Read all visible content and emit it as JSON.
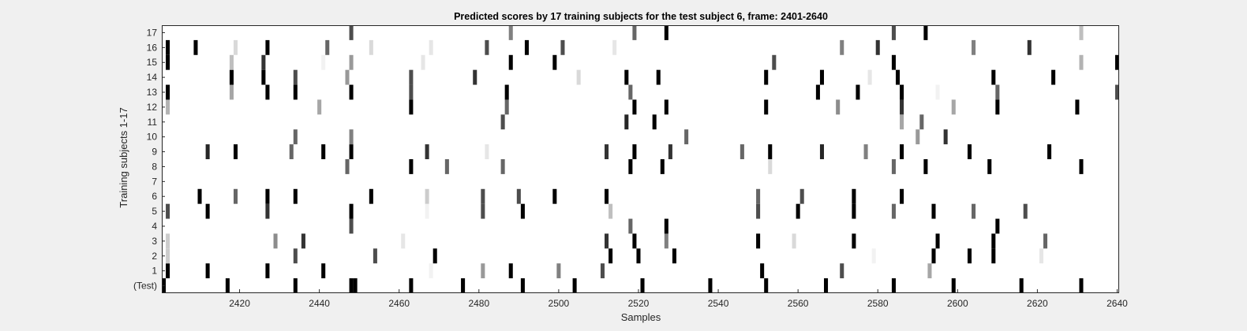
{
  "chart_data": {
    "type": "heatmap",
    "title": "Predicted scores by 17 training subjects for the test subject 6, frame: 2401-2640",
    "xlabel": "Samples",
    "ylabel": "Training subjects 1-17",
    "xlim": [
      2401,
      2640
    ],
    "x_ticks": [
      2420,
      2440,
      2460,
      2480,
      2500,
      2520,
      2540,
      2560,
      2580,
      2600,
      2620,
      2640
    ],
    "rows": [
      "(Test)",
      "1",
      "2",
      "3",
      "4",
      "5",
      "6",
      "7",
      "8",
      "9",
      "10",
      "11",
      "12",
      "13",
      "14",
      "15",
      "16",
      "17"
    ],
    "colormap": "gray (white = 0, black = 1)",
    "series": [
      {
        "name": "(Test)",
        "marks": [
          [
            2401,
            1
          ],
          [
            2417,
            1
          ],
          [
            2434,
            1
          ],
          [
            2448,
            1
          ],
          [
            2449,
            1
          ],
          [
            2463,
            1
          ],
          [
            2476,
            1
          ],
          [
            2491,
            1
          ],
          [
            2504,
            1
          ],
          [
            2521,
            1
          ],
          [
            2538,
            1
          ],
          [
            2552,
            1
          ],
          [
            2567,
            1
          ],
          [
            2584,
            1
          ],
          [
            2599,
            1
          ],
          [
            2616,
            1
          ],
          [
            2631,
            1
          ]
        ]
      },
      {
        "name": "1",
        "marks": [
          [
            2402,
            1
          ],
          [
            2412,
            1
          ],
          [
            2427,
            1
          ],
          [
            2441,
            1
          ],
          [
            2468,
            0.05
          ],
          [
            2481,
            0.4
          ],
          [
            2488,
            1
          ],
          [
            2500,
            0.5
          ],
          [
            2511,
            0.7
          ],
          [
            2551,
            1
          ],
          [
            2571,
            0.7
          ],
          [
            2593,
            0.35
          ]
        ]
      },
      {
        "name": "2",
        "marks": [
          [
            2402,
            0.2
          ],
          [
            2434,
            0.7
          ],
          [
            2454,
            0.7
          ],
          [
            2469,
            1
          ],
          [
            2513,
            1
          ],
          [
            2520,
            1
          ],
          [
            2529,
            1
          ],
          [
            2579,
            0.05
          ],
          [
            2594,
            1
          ],
          [
            2603,
            1
          ],
          [
            2609,
            1
          ],
          [
            2621,
            0.1
          ]
        ]
      },
      {
        "name": "3",
        "marks": [
          [
            2402,
            0.2
          ],
          [
            2429,
            0.45
          ],
          [
            2436,
            0.8
          ],
          [
            2461,
            0.1
          ],
          [
            2512,
            0.8
          ],
          [
            2519,
            1
          ],
          [
            2527,
            0.5
          ],
          [
            2550,
            1
          ],
          [
            2559,
            0.15
          ],
          [
            2574,
            1
          ],
          [
            2595,
            1
          ],
          [
            2609,
            1
          ],
          [
            2622,
            0.6
          ]
        ]
      },
      {
        "name": "4",
        "marks": [
          [
            2448,
            0.7
          ],
          [
            2518,
            0.6
          ],
          [
            2527,
            1
          ],
          [
            2610,
            1
          ]
        ]
      },
      {
        "name": "5",
        "marks": [
          [
            2402,
            0.7
          ],
          [
            2412,
            1
          ],
          [
            2427,
            0.8
          ],
          [
            2448,
            1
          ],
          [
            2467,
            0.05
          ],
          [
            2481,
            0.7
          ],
          [
            2491,
            1
          ],
          [
            2513,
            0.25
          ],
          [
            2550,
            0.7
          ],
          [
            2560,
            1
          ],
          [
            2574,
            1
          ],
          [
            2584,
            0.6
          ],
          [
            2594,
            1
          ],
          [
            2604,
            0.6
          ],
          [
            2617,
            0.7
          ]
        ]
      },
      {
        "name": "6",
        "marks": [
          [
            2410,
            1
          ],
          [
            2419,
            0.6
          ],
          [
            2427,
            1
          ],
          [
            2434,
            1
          ],
          [
            2453,
            1
          ],
          [
            2467,
            0.2
          ],
          [
            2481,
            0.7
          ],
          [
            2490,
            0.7
          ],
          [
            2499,
            1
          ],
          [
            2512,
            1
          ],
          [
            2550,
            0.6
          ],
          [
            2561,
            0.7
          ],
          [
            2574,
            1
          ],
          [
            2586,
            1
          ]
        ]
      },
      {
        "name": "7",
        "marks": []
      },
      {
        "name": "8",
        "marks": [
          [
            2447,
            0.6
          ],
          [
            2463,
            1
          ],
          [
            2472,
            0.6
          ],
          [
            2486,
            0.6
          ],
          [
            2518,
            1
          ],
          [
            2526,
            1
          ],
          [
            2553,
            0.15
          ],
          [
            2584,
            0.6
          ],
          [
            2592,
            1
          ],
          [
            2608,
            1
          ],
          [
            2631,
            1
          ]
        ]
      },
      {
        "name": "9",
        "marks": [
          [
            2412,
            0.85
          ],
          [
            2419,
            1
          ],
          [
            2433,
            0.6
          ],
          [
            2441,
            1
          ],
          [
            2448,
            1
          ],
          [
            2467,
            0.8
          ],
          [
            2482,
            0.1
          ],
          [
            2512,
            0.8
          ],
          [
            2519,
            1
          ],
          [
            2528,
            0.8
          ],
          [
            2546,
            0.6
          ],
          [
            2553,
            1
          ],
          [
            2566,
            0.85
          ],
          [
            2577,
            0.5
          ],
          [
            2586,
            1
          ],
          [
            2603,
            1
          ],
          [
            2623,
            1
          ]
        ]
      },
      {
        "name": "10",
        "marks": [
          [
            2434,
            0.6
          ],
          [
            2448,
            0.5
          ],
          [
            2532,
            0.6
          ],
          [
            2590,
            0.4
          ],
          [
            2597,
            0.8
          ]
        ]
      },
      {
        "name": "11",
        "marks": [
          [
            2486,
            0.7
          ],
          [
            2517,
            0.85
          ],
          [
            2524,
            1
          ],
          [
            2586,
            0.35
          ],
          [
            2591,
            0.6
          ]
        ]
      },
      {
        "name": "12",
        "marks": [
          [
            2402,
            0.3
          ],
          [
            2440,
            0.35
          ],
          [
            2463,
            1
          ],
          [
            2487,
            0.6
          ],
          [
            2519,
            1
          ],
          [
            2527,
            1
          ],
          [
            2552,
            1
          ],
          [
            2570,
            0.45
          ],
          [
            2586,
            0.8
          ],
          [
            2599,
            0.35
          ],
          [
            2610,
            1
          ],
          [
            2630,
            1
          ]
        ]
      },
      {
        "name": "13",
        "marks": [
          [
            2402,
            1
          ],
          [
            2418,
            0.35
          ],
          [
            2427,
            1
          ],
          [
            2434,
            1
          ],
          [
            2448,
            1
          ],
          [
            2463,
            0.7
          ],
          [
            2487,
            1
          ],
          [
            2518,
            0.6
          ],
          [
            2565,
            1
          ],
          [
            2575,
            1
          ],
          [
            2586,
            1
          ],
          [
            2595,
            0.05
          ],
          [
            2610,
            0.6
          ],
          [
            2640,
            0.7
          ]
        ]
      },
      {
        "name": "14",
        "marks": [
          [
            2418,
            1
          ],
          [
            2426,
            1
          ],
          [
            2434,
            0.7
          ],
          [
            2447,
            0.4
          ],
          [
            2463,
            0.7
          ],
          [
            2479,
            0.8
          ],
          [
            2505,
            0.15
          ],
          [
            2517,
            1
          ],
          [
            2525,
            1
          ],
          [
            2552,
            1
          ],
          [
            2566,
            1
          ],
          [
            2578,
            0.1
          ],
          [
            2585,
            1
          ],
          [
            2609,
            1
          ],
          [
            2624,
            1
          ]
        ]
      },
      {
        "name": "15",
        "marks": [
          [
            2402,
            1
          ],
          [
            2418,
            0.25
          ],
          [
            2426,
            0.8
          ],
          [
            2441,
            0.05
          ],
          [
            2448,
            0.4
          ],
          [
            2466,
            0.1
          ],
          [
            2488,
            1
          ],
          [
            2499,
            1
          ],
          [
            2554,
            0.7
          ],
          [
            2584,
            1
          ],
          [
            2631,
            0.3
          ],
          [
            2640,
            1
          ]
        ]
      },
      {
        "name": "16",
        "marks": [
          [
            2402,
            1
          ],
          [
            2409,
            1
          ],
          [
            2419,
            0.15
          ],
          [
            2427,
            1
          ],
          [
            2442,
            0.6
          ],
          [
            2453,
            0.15
          ],
          [
            2468,
            0.1
          ],
          [
            2482,
            0.7
          ],
          [
            2492,
            1
          ],
          [
            2501,
            0.7
          ],
          [
            2514,
            0.1
          ],
          [
            2571,
            0.5
          ],
          [
            2580,
            0.8
          ],
          [
            2604,
            0.5
          ],
          [
            2618,
            0.8
          ]
        ]
      },
      {
        "name": "17",
        "marks": [
          [
            2448,
            0.7
          ],
          [
            2488,
            0.5
          ],
          [
            2519,
            0.6
          ],
          [
            2527,
            1
          ],
          [
            2584,
            0.7
          ],
          [
            2592,
            1
          ],
          [
            2631,
            0.25
          ]
        ]
      }
    ]
  }
}
